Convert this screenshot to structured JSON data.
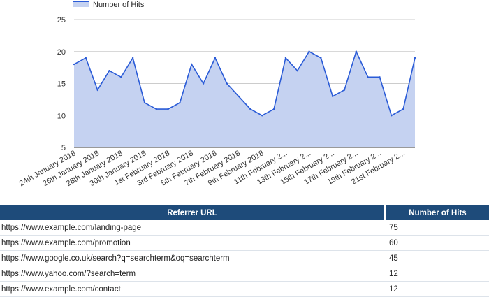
{
  "chart_data": {
    "type": "area",
    "legend": {
      "label": "Number of Hits",
      "position": "top-left"
    },
    "color": "#2a5bd7",
    "fill": "#c5d2f1",
    "ylim": [
      5,
      25
    ],
    "yticks": [
      5,
      10,
      15,
      20,
      25
    ],
    "grid": true,
    "x_tick_labels": [
      "24th January 2018",
      "26th January 2018",
      "28th January 2018",
      "30th January 2018",
      "1st February 2018",
      "3rd February 2018",
      "5th February 2018",
      "7th February 2018",
      "9th February 2018",
      "11th February 2...",
      "13th February 2...",
      "15th February 2...",
      "17th February 2...",
      "19th February 2...",
      "21st February 2..."
    ],
    "series": [
      {
        "name": "Number of Hits",
        "values": [
          18,
          19,
          14,
          17,
          16,
          19,
          12,
          11,
          11,
          12,
          18,
          15,
          19,
          15,
          13,
          11,
          10,
          11,
          19,
          17,
          20,
          19,
          13,
          14,
          20,
          16,
          16,
          10,
          11,
          19
        ]
      }
    ]
  },
  "table": {
    "headers": [
      "Referrer URL",
      "Number of Hits"
    ],
    "rows": [
      [
        "https://www.example.com/landing-page",
        "75"
      ],
      [
        "https://www.example.com/promotion",
        "60"
      ],
      [
        "https://www.google.co.uk/search?q=searchterm&oq=searchterm",
        "45"
      ],
      [
        "https://www.yahoo.com/?search=term",
        "12"
      ],
      [
        "https://www.example.com/contact",
        "12"
      ]
    ]
  }
}
